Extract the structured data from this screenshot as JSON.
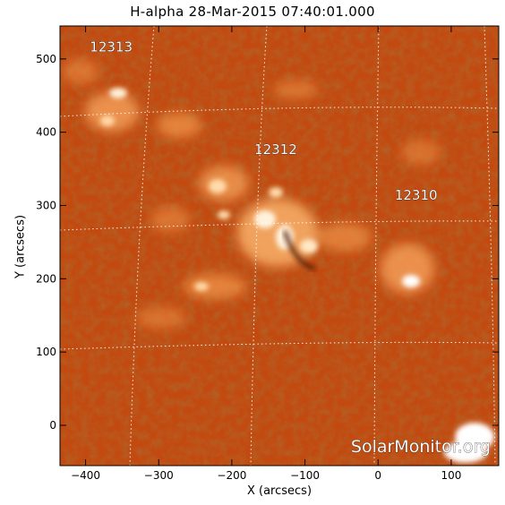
{
  "title": "H-alpha 28-Mar-2015 07:40:01.000",
  "axes": {
    "xlabel": "X (arcsecs)",
    "ylabel": "Y (arcsecs)",
    "xlim": [
      -435,
      165
    ],
    "ylim": [
      -55,
      545
    ],
    "x_ticks": [
      -400,
      -300,
      -200,
      -100,
      0,
      100
    ],
    "y_ticks": [
      0,
      100,
      200,
      300,
      400,
      500
    ]
  },
  "regions": [
    {
      "label": "12313",
      "x": -365,
      "y": 510
    },
    {
      "label": "12312",
      "x": -140,
      "y": 370
    },
    {
      "label": "12310",
      "x": 52,
      "y": 308
    }
  ],
  "watermark": "SolarMonitor.org",
  "colors": {
    "background_disk": "#c24a10",
    "dark_texture": "#8f2c08",
    "bright_plage": "#ffe3b8",
    "grid": "#ffffff",
    "frame": "#000000"
  }
}
